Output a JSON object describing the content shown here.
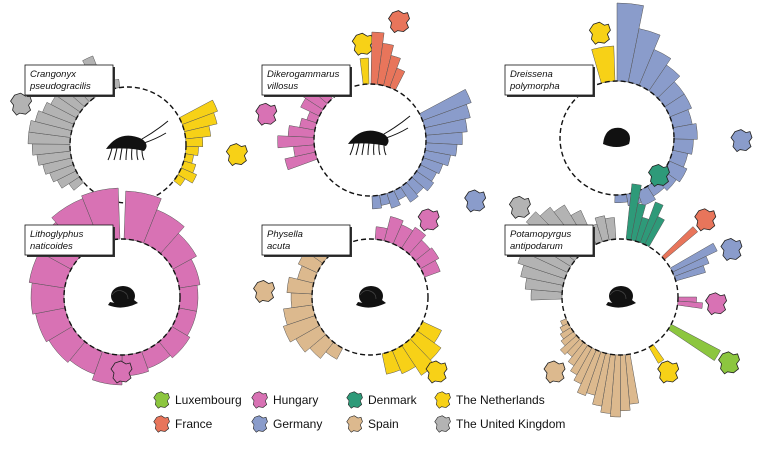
{
  "colors": {
    "Luxembourg": "#8cc63f",
    "Hungary": "#d872b4",
    "Denmark": "#2e9a79",
    "The Netherlands": "#f7d117",
    "France": "#e8755b",
    "Germany": "#8a9ccb",
    "Spain": "#dcb98e",
    "The United Kingdom": "#b3b3b3"
  },
  "legend": [
    {
      "label": "Luxembourg",
      "icon": "luxembourg-map-icon"
    },
    {
      "label": "Hungary",
      "icon": "hungary-map-icon"
    },
    {
      "label": "Denmark",
      "icon": "denmark-map-icon"
    },
    {
      "label": "The Netherlands",
      "icon": "netherlands-map-icon"
    },
    {
      "label": "France",
      "icon": "france-map-icon"
    },
    {
      "label": "Germany",
      "icon": "germany-map-icon"
    },
    {
      "label": "Spain",
      "icon": "spain-map-icon"
    },
    {
      "label": "The United Kingdom",
      "icon": "united-kingdom-map-icon"
    }
  ],
  "chart_data": [
    {
      "type": "bar",
      "polar": true,
      "species_line1": "Crangonyx",
      "species_line2": "pseudogracilis",
      "silhouette": "amphipod",
      "segments": [
        {
          "country": "The Netherlands",
          "values": [
            0.9,
            0.8,
            0.6,
            0.4,
            0.3,
            0.2,
            0.3,
            0.4,
            0.2
          ]
        },
        {
          "country": "The United Kingdom",
          "values": [
            0.3,
            0.5,
            0.6,
            0.7,
            0.8,
            0.9,
            1.0,
            1.0,
            0.9,
            0.8,
            0.7,
            0.6,
            0.5,
            0.4,
            0.3,
            0.9,
            0.5,
            0.2
          ]
        }
      ]
    },
    {
      "type": "bar",
      "polar": true,
      "species_line1": "Dikerogammarus",
      "species_line2": "villosus",
      "silhouette": "amphipod",
      "segments": [
        {
          "country": "The Netherlands",
          "values": [
            0.5
          ]
        },
        {
          "country": "France",
          "values": [
            1.0,
            0.8,
            0.6,
            0.4
          ]
        },
        {
          "country": "Germany",
          "values": [
            1.0,
            0.9,
            0.8,
            0.7,
            0.6,
            0.5,
            0.4,
            0.35,
            0.4,
            0.3,
            0.35,
            0.2,
            0.3,
            0.2,
            0.25
          ]
        },
        {
          "country": "Hungary",
          "values": [
            0.6,
            0.4,
            0.7,
            0.5,
            0.3,
            0.2,
            0.4,
            0.5,
            0.3
          ]
        }
      ]
    },
    {
      "type": "bar",
      "polar": true,
      "species_line1": "Dreissena",
      "species_line2": "polymorpha",
      "silhouette": "mussel",
      "segments": [
        {
          "country": "Germany",
          "values": [
            1.0,
            0.7,
            0.5,
            0.4,
            0.3,
            0.3,
            0.25,
            0.3,
            0.25,
            0.2,
            0.25,
            0.2,
            0.15,
            0.2,
            0.15,
            0.1
          ]
        },
        {
          "country": "The Netherlands",
          "values": [
            0.45
          ]
        }
      ]
    },
    {
      "type": "bar",
      "polar": true,
      "species_line1": "Lithoglyphus",
      "species_line2": "naticoides",
      "silhouette": "snail",
      "segments": [
        {
          "country": "Hungary",
          "values": [
            0.8,
            0.6,
            0.45,
            0.35,
            0.3,
            0.3,
            0.35,
            0.3,
            0.35,
            0.5,
            0.4,
            0.45,
            0.5,
            0.55,
            0.6,
            0.7,
            0.8,
            0.85
          ]
        }
      ]
    },
    {
      "type": "bar",
      "polar": true,
      "species_line1": "Physella",
      "species_line2": "acuta",
      "silhouette": "snail",
      "segments": [
        {
          "country": "Hungary",
          "values": [
            0.3,
            0.6,
            0.5,
            0.6,
            0.45,
            0.5,
            0.4
          ]
        },
        {
          "country": "The Netherlands",
          "values": [
            0.5,
            0.7,
            0.85,
            0.6,
            0.5
          ]
        },
        {
          "country": "Spain",
          "values": [
            0.3,
            0.5,
            0.65,
            0.8,
            0.7,
            0.5,
            0.6,
            0.4,
            0.5,
            0.3,
            0.4,
            0.3
          ]
        }
      ]
    },
    {
      "type": "bar",
      "polar": true,
      "species_line1": "Potamopyrgus",
      "species_line2": "antipodarum",
      "silhouette": "snail",
      "segments": [
        {
          "country": "Denmark",
          "values": [
            0.9,
            0.6,
            0.4,
            0.7,
            0.5
          ]
        },
        {
          "country": "France",
          "values": [
            0.7
          ]
        },
        {
          "country": "Germany",
          "values": [
            0.8,
            0.6,
            0.5
          ]
        },
        {
          "country": "Hungary",
          "values": [
            0.3,
            0.4
          ]
        },
        {
          "country": "Luxembourg",
          "values": [
            0.9
          ]
        },
        {
          "country": "The Netherlands",
          "values": [
            0.3
          ]
        },
        {
          "country": "Spain",
          "values": [
            0.8,
            0.9,
            1.0,
            0.95,
            0.85,
            0.7,
            0.75,
            0.6,
            0.5,
            0.4,
            0.3,
            0.35,
            0.25,
            0.2,
            0.15,
            0.1
          ]
        },
        {
          "country": "The United Kingdom",
          "values": [
            0.5,
            0.6,
            0.7,
            0.8,
            0.85,
            0.9,
            1.0,
            0.9,
            0.8,
            0.6,
            0.3,
            0.4,
            0.35
          ]
        }
      ]
    }
  ]
}
